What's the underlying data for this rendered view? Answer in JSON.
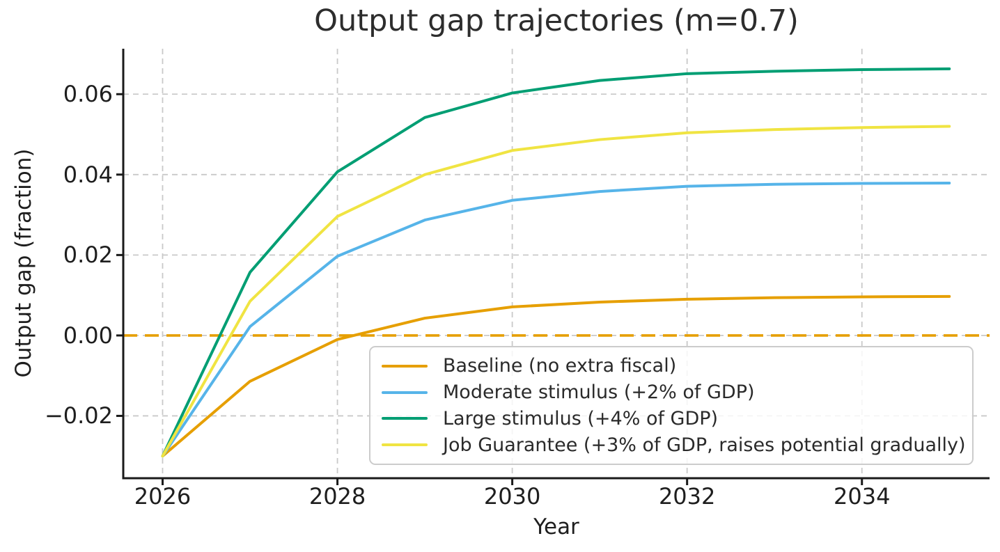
{
  "figure": {
    "background": "#ffffff"
  },
  "chart_data": {
    "type": "line",
    "title": "Output gap trajectories (m=0.7)",
    "xlabel": "Year",
    "ylabel": "Output gap (fraction)",
    "x": [
      2026,
      2027,
      2028,
      2029,
      2030,
      2031,
      2032,
      2033,
      2034,
      2035
    ],
    "series": [
      {
        "id": "baseline",
        "label": "Baseline (no extra fiscal)",
        "color": "#E69F00",
        "style": "solid",
        "values": [
          -0.03,
          -0.0114,
          -0.001,
          0.0043,
          0.0071,
          0.0083,
          0.009,
          0.0094,
          0.0096,
          0.0097
        ]
      },
      {
        "id": "moderate-stimulus",
        "label": "Moderate stimulus (+2% of GDP)",
        "color": "#56B4E9",
        "style": "solid",
        "values": [
          -0.03,
          0.0022,
          0.0197,
          0.0287,
          0.0336,
          0.0358,
          0.0371,
          0.0376,
          0.0378,
          0.0379
        ]
      },
      {
        "id": "large-stimulus",
        "label": "Large stimulus (+4% of GDP)",
        "color": "#009E73",
        "style": "solid",
        "values": [
          -0.03,
          0.0157,
          0.0407,
          0.0542,
          0.0603,
          0.0634,
          0.0651,
          0.0657,
          0.0661,
          0.0663
        ]
      },
      {
        "id": "job-guarantee",
        "label": "Job Guarantee (+3% of GDP, raises potential gradually)",
        "color": "#F0E442",
        "style": "solid",
        "values": [
          -0.03,
          0.0085,
          0.0296,
          0.04,
          0.046,
          0.0487,
          0.0504,
          0.0512,
          0.0517,
          0.052
        ]
      }
    ],
    "reference_line": {
      "y": 0.0,
      "color": "#E69F00",
      "style": "dashed"
    },
    "x_ticks": [
      {
        "v": 2026,
        "label": "2026"
      },
      {
        "v": 2028,
        "label": "2028"
      },
      {
        "v": 2030,
        "label": "2030"
      },
      {
        "v": 2032,
        "label": "2032"
      },
      {
        "v": 2034,
        "label": "2034"
      }
    ],
    "y_ticks": [
      {
        "v": -0.02,
        "label": "−0.02"
      },
      {
        "v": 0.0,
        "label": "0.00"
      },
      {
        "v": 0.02,
        "label": "0.02"
      },
      {
        "v": 0.04,
        "label": "0.04"
      },
      {
        "v": 0.06,
        "label": "0.06"
      }
    ],
    "xlim": [
      2025.55,
      2035.46
    ],
    "ylim": [
      -0.0355,
      0.0713
    ],
    "grid": true,
    "grid_color": "#c9c9c9",
    "axis_color": "#1a1a1a",
    "legend_position": "lower right inside axes"
  }
}
